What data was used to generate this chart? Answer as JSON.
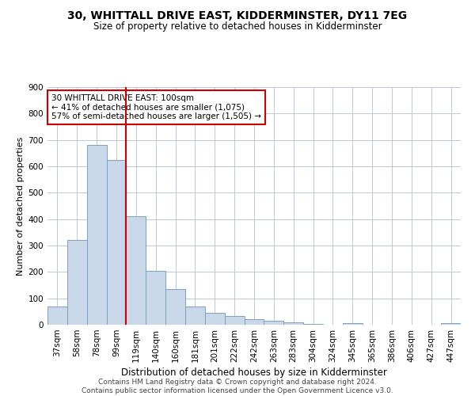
{
  "title": "30, WHITTALL DRIVE EAST, KIDDERMINSTER, DY11 7EG",
  "subtitle": "Size of property relative to detached houses in Kidderminster",
  "xlabel": "Distribution of detached houses by size in Kidderminster",
  "ylabel": "Number of detached properties",
  "footer_line1": "Contains HM Land Registry data © Crown copyright and database right 2024.",
  "footer_line2": "Contains public sector information licensed under the Open Government Licence v3.0.",
  "annotation_title": "30 WHITTALL DRIVE EAST: 100sqm",
  "annotation_line1": "← 41% of detached houses are smaller (1,075)",
  "annotation_line2": "57% of semi-detached houses are larger (1,505) →",
  "bar_color": "#c8d8e8",
  "bar_edge_color": "#7aa0c4",
  "vline_color": "#cc0000",
  "annotation_box_color": "#cc0000",
  "grid_color": "#c0c8d8",
  "categories": [
    "37sqm",
    "58sqm",
    "78sqm",
    "99sqm",
    "119sqm",
    "140sqm",
    "160sqm",
    "181sqm",
    "201sqm",
    "222sqm",
    "242sqm",
    "263sqm",
    "283sqm",
    "304sqm",
    "324sqm",
    "345sqm",
    "365sqm",
    "386sqm",
    "406sqm",
    "427sqm",
    "447sqm"
  ],
  "values": [
    70,
    320,
    680,
    625,
    410,
    205,
    135,
    68,
    45,
    32,
    20,
    15,
    10,
    2,
    1,
    7,
    1,
    0,
    0,
    0,
    5
  ],
  "ylim": [
    0,
    900
  ],
  "yticks": [
    0,
    100,
    200,
    300,
    400,
    500,
    600,
    700,
    800,
    900
  ],
  "vline_position": 3.5,
  "title_fontsize": 10,
  "subtitle_fontsize": 8.5,
  "xlabel_fontsize": 8.5,
  "ylabel_fontsize": 8,
  "tick_fontsize": 7.5,
  "footer_fontsize": 6.5
}
